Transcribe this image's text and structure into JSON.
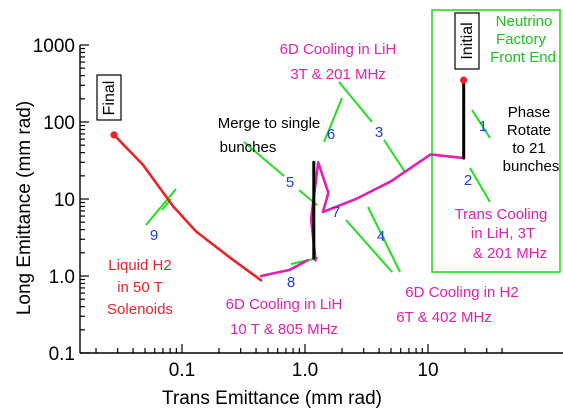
{
  "chart_data": {
    "type": "line",
    "xlabel": "Trans Emittance  (mm rad)",
    "ylabel": "Long Emittance  (mm rad)",
    "xscale": "log",
    "yscale": "log",
    "xlim": [
      0.02,
      40
    ],
    "ylim": [
      0.1,
      1000
    ],
    "x_ticks": [
      "0.1",
      "1.0",
      "10"
    ],
    "y_ticks": [
      "0.1",
      "1.0",
      "10",
      "100",
      "1000"
    ],
    "colors": {
      "red": "#e8242a",
      "magenta": "#e020b0",
      "black": "#000000",
      "green": "#20e020",
      "blue": "#1f3fd8"
    },
    "series": [
      {
        "color": "#e8242a",
        "points": [
          [
            0.028,
            68
          ],
          [
            0.048,
            28
          ],
          [
            0.085,
            8
          ],
          [
            0.13,
            3.8
          ],
          [
            0.25,
            1.7
          ],
          [
            0.44,
            0.88
          ]
        ]
      },
      {
        "color": "#e020b0",
        "points": [
          [
            0.44,
            1.0
          ],
          [
            0.75,
            1.2
          ],
          [
            1.05,
            1.6
          ]
        ]
      },
      {
        "color": "#e020b0",
        "points": [
          [
            1.22,
            1.6
          ],
          [
            1.12,
            5.5
          ],
          [
            1.28,
            30
          ],
          [
            1.55,
            12
          ],
          [
            1.4,
            6.8
          ]
        ]
      },
      {
        "color": "#e020b0",
        "points": [
          [
            1.4,
            6.8
          ],
          [
            2.6,
            10
          ],
          [
            5.0,
            17
          ],
          [
            10.5,
            38
          ],
          [
            19.5,
            34
          ]
        ]
      },
      {
        "color": "#000000",
        "points": [
          [
            1.18,
            1.7
          ],
          [
            1.18,
            30
          ]
        ]
      },
      {
        "color": "#000000",
        "points": [
          [
            19.5,
            34
          ],
          [
            19.5,
            350
          ]
        ]
      }
    ],
    "endpoints": [
      {
        "x": 0.028,
        "y": 68,
        "color": "#e8242a"
      },
      {
        "x": 19.5,
        "y": 350,
        "color": "#e8242a"
      }
    ],
    "box_labels": [
      "Final",
      "Initial"
    ],
    "annotations": [
      {
        "lines": [
          "Neutrino",
          "Factory",
          "Front End"
        ],
        "color": "#20c020"
      },
      {
        "lines": [
          "6D Cooling in LiH",
          "3T & 201 MHz"
        ],
        "color": "#e020b0"
      },
      {
        "lines": [
          "Merge to single",
          "bunches"
        ],
        "color": "#000000"
      },
      {
        "lines": [
          "Phase",
          "Rotate",
          "to 21",
          "bunches"
        ],
        "color": "#000000"
      },
      {
        "lines": [
          "Trans Cooling",
          "in LiH, 3T",
          "& 201 MHz"
        ],
        "color": "#e020b0"
      },
      {
        "lines": [
          "Liquid H2",
          "in 50 T",
          "Solenoids"
        ],
        "color": "#e8242a"
      },
      {
        "lines": [
          "6D Cooling in LiH",
          "10 T & 805 MHz"
        ],
        "color": "#e020b0"
      },
      {
        "lines": [
          "6D Cooling in H2",
          "6T & 402 MHz"
        ],
        "color": "#e020b0"
      }
    ],
    "stage_labels": [
      "1",
      "2",
      "3",
      "4",
      "5",
      "6",
      "7",
      "8",
      "9"
    ]
  }
}
